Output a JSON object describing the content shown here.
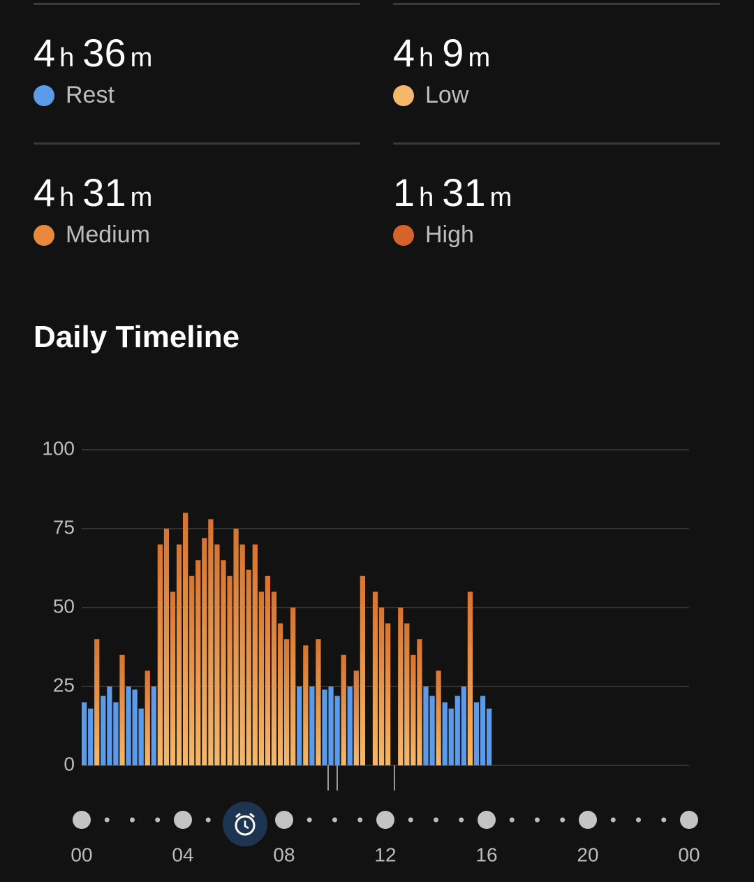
{
  "tiles": [
    {
      "hours": "4",
      "hours_unit": "h",
      "minutes": "36",
      "minutes_unit": "m",
      "label": "Rest",
      "color": "#5b9bea"
    },
    {
      "hours": "4",
      "hours_unit": "h",
      "minutes": "9",
      "minutes_unit": "m",
      "label": "Low",
      "color": "#f5b86a"
    },
    {
      "hours": "4",
      "hours_unit": "h",
      "minutes": "31",
      "minutes_unit": "m",
      "label": "Medium",
      "color": "#e8883a"
    },
    {
      "hours": "1",
      "hours_unit": "h",
      "minutes": "31",
      "minutes_unit": "m",
      "label": "High",
      "color": "#d6632a"
    }
  ],
  "chart_data": {
    "type": "bar",
    "title": "Daily Timeline",
    "x": [
      0,
      0.25,
      0.5,
      0.75,
      1,
      1.25,
      1.5,
      1.75,
      2,
      2.25,
      2.5,
      2.75,
      3,
      3.25,
      3.5,
      3.75,
      4,
      4.25,
      4.5,
      4.75,
      5,
      5.25,
      5.5,
      5.75,
      6,
      6.25,
      6.5,
      6.75,
      7,
      7.25,
      7.5,
      7.75,
      8,
      8.25,
      8.5,
      8.75,
      9,
      9.25,
      9.5,
      9.75,
      10,
      10.25,
      10.5,
      10.75,
      11,
      11.25,
      11.5,
      11.75,
      12,
      12.25,
      12.5,
      12.75,
      13,
      13.25,
      13.5,
      13.75,
      14,
      14.25,
      14.5,
      14.75,
      15,
      15.25,
      15.5,
      15.75,
      16
    ],
    "values": [
      20,
      18,
      40,
      22,
      25,
      20,
      35,
      25,
      24,
      18,
      30,
      25,
      70,
      75,
      55,
      70,
      80,
      60,
      65,
      72,
      78,
      70,
      65,
      60,
      75,
      70,
      62,
      70,
      55,
      60,
      55,
      45,
      40,
      50,
      25,
      38,
      25,
      40,
      24,
      25,
      22,
      35,
      25,
      30,
      60,
      null,
      55,
      50,
      45,
      null,
      50,
      45,
      35,
      40,
      25,
      22,
      30,
      20,
      18,
      22,
      25,
      55,
      20,
      22,
      18
    ],
    "colors": [
      "#5b9bea",
      "#5b9bea",
      "#e8893c",
      "#5b9bea",
      "#5b9bea",
      "#5b9bea",
      "#e8893c",
      "#5b9bea",
      "#5b9bea",
      "#5b9bea",
      "#e8893c",
      "#5b9bea",
      "#e8893c",
      "#e8893c",
      "#e8893c",
      "#e8893c",
      "#e8893c",
      "#e8893c",
      "#e8893c",
      "#e8893c",
      "#e8893c",
      "#e8893c",
      "#e8893c",
      "#e8893c",
      "#e8893c",
      "#e8893c",
      "#e8893c",
      "#e8893c",
      "#e8893c",
      "#e8893c",
      "#e8893c",
      "#e8893c",
      "#e8893c",
      "#e8893c",
      "#5b9bea",
      "#e8893c",
      "#5b9bea",
      "#e8893c",
      "#5b9bea",
      "#5b9bea",
      "#5b9bea",
      "#e8893c",
      "#5b9bea",
      "#e8893c",
      "#e8893c",
      null,
      "#e8893c",
      "#e8893c",
      "#e8893c",
      null,
      "#e8893c",
      "#e8893c",
      "#e8893c",
      "#e8893c",
      "#5b9bea",
      "#5b9bea",
      "#e8893c",
      "#5b9bea",
      "#5b9bea",
      "#5b9bea",
      "#5b9bea",
      "#e8893c",
      "#5b9bea",
      "#5b9bea",
      "#5b9bea"
    ],
    "xlim": [
      0,
      24
    ],
    "xticks": [
      {
        "value": 0,
        "label": "00"
      },
      {
        "value": 4,
        "label": "04"
      },
      {
        "value": 8,
        "label": "08"
      },
      12,
      16,
      20,
      {
        "value": 24,
        "label": "00"
      }
    ],
    "ylim": [
      0,
      100
    ],
    "yticks": [
      0,
      25,
      50,
      75,
      100
    ],
    "grid": true
  }
}
